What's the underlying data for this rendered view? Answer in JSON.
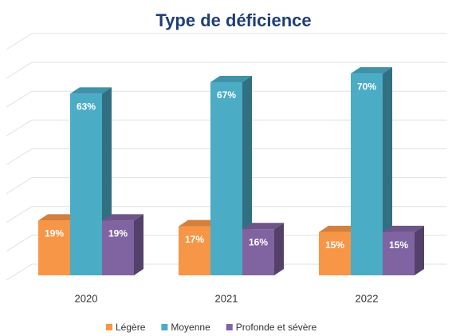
{
  "chart_data": {
    "type": "bar",
    "title": "Type de déficience",
    "categories": [
      "2020",
      "2021",
      "2022"
    ],
    "series": [
      {
        "name": "Légère",
        "color": "#f79646",
        "values": [
          19,
          17,
          15
        ],
        "value_labels": [
          "19%",
          "17%",
          "15%"
        ]
      },
      {
        "name": "Moyenne",
        "color": "#4bacc6",
        "values": [
          63,
          67,
          70
        ],
        "value_labels": [
          "63%",
          "67%",
          "70%"
        ]
      },
      {
        "name": "Profonde et sévère",
        "color": "#8064a2",
        "values": [
          19,
          16,
          15
        ],
        "value_labels": [
          "19%",
          "16%",
          "15%"
        ]
      }
    ],
    "ylim": [
      0,
      80
    ],
    "yticks": [
      0,
      10,
      20,
      30,
      40,
      50,
      60,
      70,
      80
    ],
    "grid": true,
    "legend": "bottom"
  }
}
